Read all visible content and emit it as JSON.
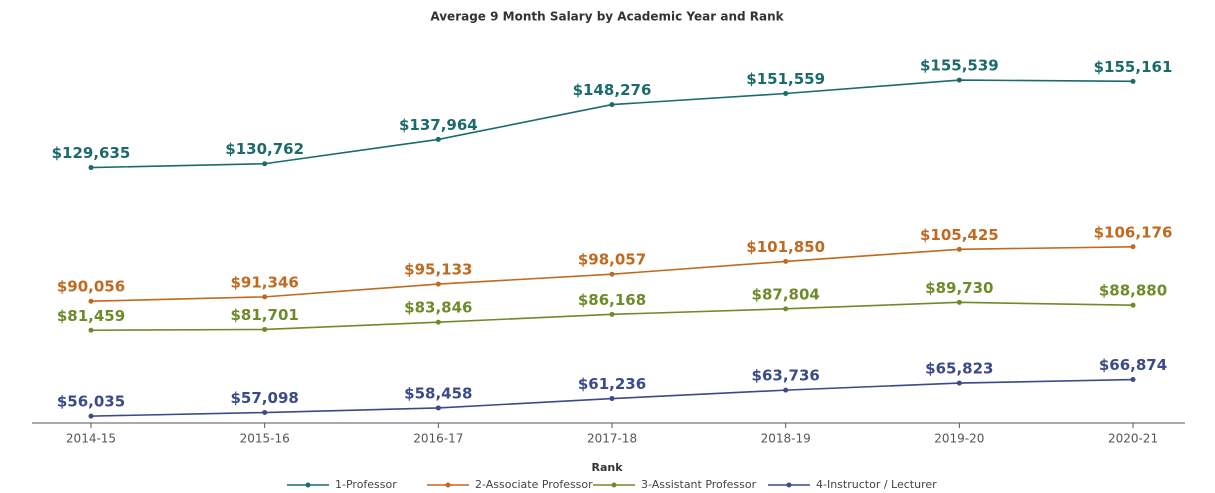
{
  "chart_data": {
    "type": "line",
    "title": "Average 9 Month Salary by Academic Year and Rank",
    "categories": [
      "2014-15",
      "2015-16",
      "2016-17",
      "2017-18",
      "2018-19",
      "2019-20",
      "2020-21"
    ],
    "ylim": [
      54000,
      160000
    ],
    "legend_title": "Rank",
    "legend": "bottom",
    "series": [
      {
        "name": "1-Professor",
        "color": "#1b6b6b",
        "values": [
          129635,
          130762,
          137964,
          148276,
          151559,
          155539,
          155161
        ],
        "value_labels": [
          "$129,635",
          "$130,762",
          "$137,964",
          "$148,276",
          "$151,559",
          "$155,539",
          "$155,161"
        ]
      },
      {
        "name": "2-Associate Professor",
        "color": "#c0691f",
        "values": [
          90056,
          91346,
          95133,
          98057,
          101850,
          105425,
          106176
        ],
        "value_labels": [
          "$90,056",
          "$91,346",
          "$95,133",
          "$98,057",
          "$101,850",
          "$105,425",
          "$106,176"
        ]
      },
      {
        "name": "3-Assistant Professor",
        "color": "#6e8b2a",
        "values": [
          81459,
          81701,
          83846,
          86168,
          87804,
          89730,
          88880
        ],
        "value_labels": [
          "$81,459",
          "$81,701",
          "$83,846",
          "$86,168",
          "$87,804",
          "$89,730",
          "$88,880"
        ]
      },
      {
        "name": "4-Instructor / Lecturer",
        "color": "#3a4a8a",
        "values": [
          56035,
          57098,
          58458,
          61236,
          63736,
          65823,
          66874
        ],
        "value_labels": [
          "$56,035",
          "$57,098",
          "$58,458",
          "$61,236",
          "$63,736",
          "$65,823",
          "$66,874"
        ]
      }
    ]
  }
}
